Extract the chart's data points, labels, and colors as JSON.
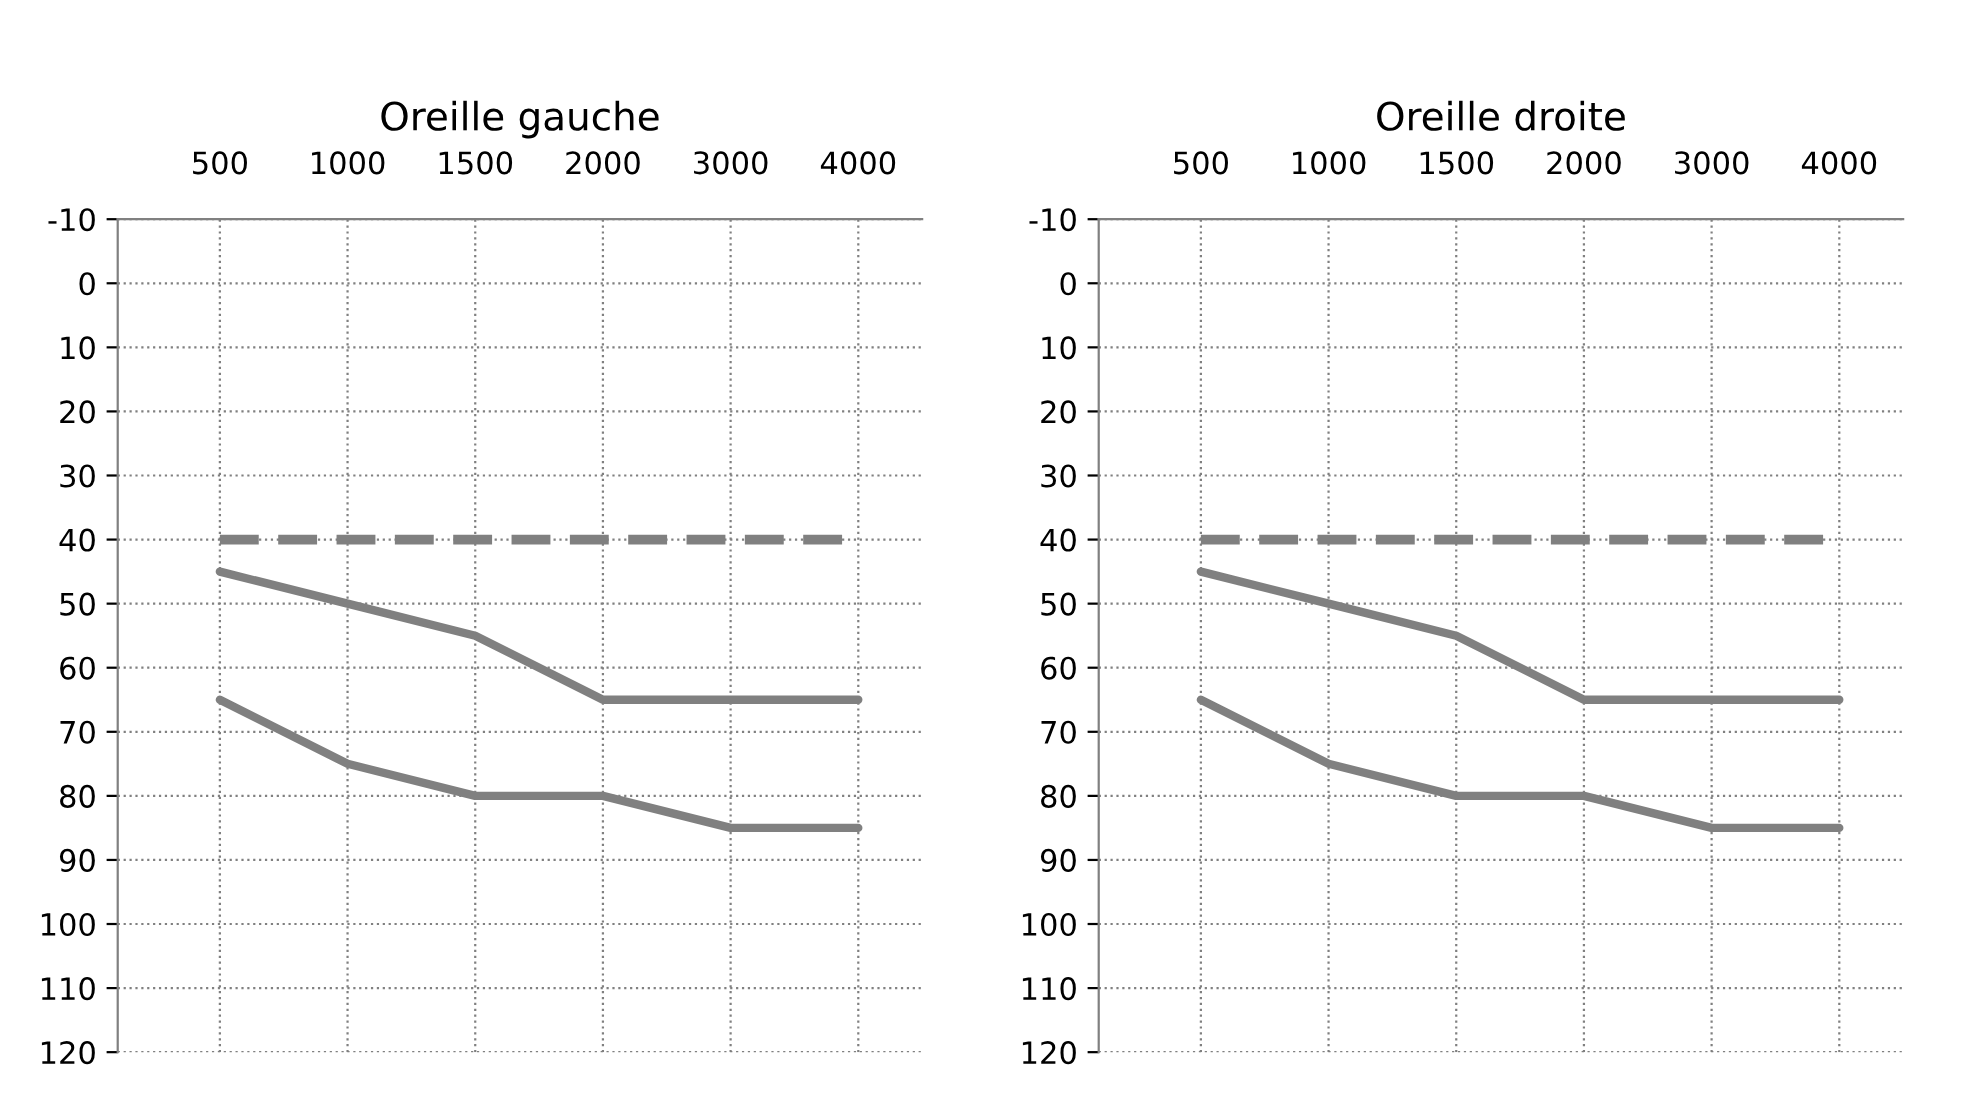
{
  "chart_data": [
    {
      "type": "line",
      "title": "Oreille gauche",
      "categories": [
        "500",
        "1000",
        "1500",
        "2000",
        "3000",
        "4000"
      ],
      "ylim": [
        120,
        -10
      ],
      "yticks": [
        -10,
        0,
        10,
        20,
        30,
        40,
        50,
        60,
        70,
        80,
        90,
        100,
        110,
        120
      ],
      "grid": true,
      "series": [
        {
          "color": "#808080",
          "line_style": "dashed",
          "values": [
            40,
            40,
            40,
            40,
            40,
            40
          ]
        },
        {
          "color": "#808080",
          "line_style": "solid",
          "values": [
            45,
            50,
            55,
            65,
            65,
            65
          ]
        },
        {
          "color": "#808080",
          "line_style": "solid",
          "values": [
            65,
            75,
            80,
            80,
            85,
            85
          ]
        }
      ]
    },
    {
      "type": "line",
      "title": "Oreille droite",
      "categories": [
        "500",
        "1000",
        "1500",
        "2000",
        "3000",
        "4000"
      ],
      "ylim": [
        120,
        -10
      ],
      "yticks": [
        -10,
        0,
        10,
        20,
        30,
        40,
        50,
        60,
        70,
        80,
        90,
        100,
        110,
        120
      ],
      "grid": true,
      "series": [
        {
          "color": "#808080",
          "line_style": "dashed",
          "values": [
            40,
            40,
            40,
            40,
            40,
            40
          ]
        },
        {
          "color": "#808080",
          "line_style": "solid",
          "values": [
            45,
            50,
            55,
            65,
            65,
            65
          ]
        },
        {
          "color": "#808080",
          "line_style": "solid",
          "values": [
            65,
            75,
            80,
            80,
            85,
            85
          ]
        }
      ]
    }
  ]
}
